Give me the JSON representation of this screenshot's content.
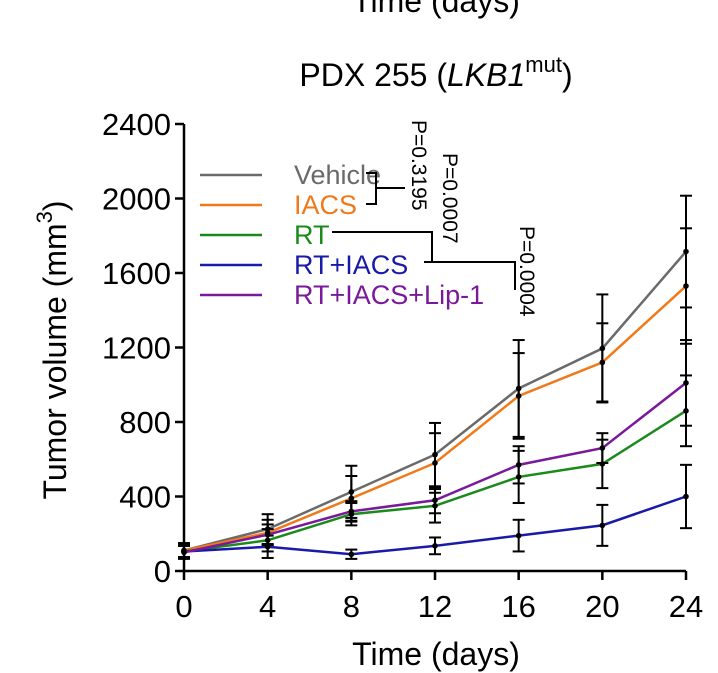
{
  "chart_data": {
    "type": "line",
    "title_prefix": "PDX 255 (",
    "title_gene": "LKB1",
    "title_superscript": "mut",
    "title_suffix": ")",
    "top_cut_text": "Time (days)",
    "xlabel": "Time (days)",
    "ylabel_main": "Tumor volume (mm",
    "ylabel_sup": "3",
    "ylabel_end": ")",
    "xlim": [
      0,
      24
    ],
    "ylim": [
      0,
      2400
    ],
    "x_ticks": [
      0,
      4,
      8,
      12,
      16,
      20,
      24
    ],
    "y_ticks": [
      0,
      400,
      800,
      1200,
      1600,
      2000,
      2400
    ],
    "x": [
      0,
      4,
      8,
      12,
      16,
      20,
      24
    ],
    "series": [
      {
        "name": "Vehicle",
        "color": "#6a6a6a",
        "values": [
          110,
          225,
          425,
          625,
          980,
          1195,
          1715
        ],
        "errors": [
          40,
          80,
          140,
          170,
          260,
          290,
          300
        ]
      },
      {
        "name": "IACS",
        "color": "#f07a1a",
        "values": [
          110,
          205,
          390,
          580,
          940,
          1120,
          1530
        ],
        "errors": [
          40,
          70,
          120,
          160,
          230,
          210,
          310
        ]
      },
      {
        "name": "RT",
        "color": "#1a8a1a",
        "values": [
          105,
          165,
          305,
          350,
          505,
          575,
          860
        ],
        "errors": [
          35,
          60,
          60,
          90,
          140,
          130,
          190
        ]
      },
      {
        "name": "RT+IACS",
        "color": "#1a1aa8",
        "values": [
          105,
          130,
          90,
          135,
          190,
          245,
          400
        ],
        "errors": [
          30,
          60,
          25,
          45,
          85,
          110,
          170
        ]
      },
      {
        "name": "RT+IACS+Lip-1",
        "color": "#7a1a9a",
        "values": [
          100,
          195,
          320,
          380,
          570,
          660,
          1010
        ],
        "errors": [
          35,
          55,
          55,
          70,
          100,
          80,
          230
        ]
      }
    ],
    "legend_position": "top-left",
    "annotations": [
      "P=0.3195",
      "P=0.0007",
      "P=0.0004"
    ]
  }
}
